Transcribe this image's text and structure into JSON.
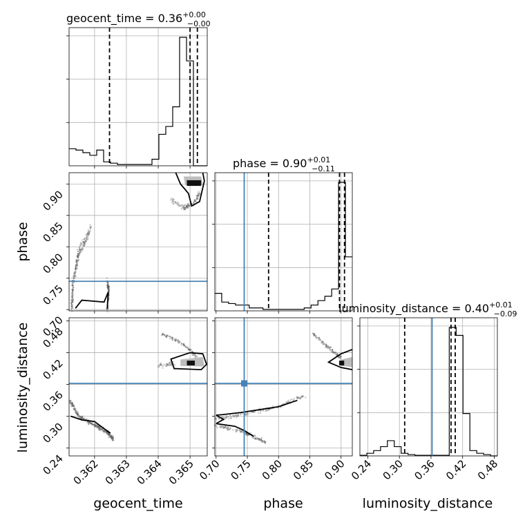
{
  "chart_data": {
    "type": "corner",
    "parameters": [
      "geocent_time",
      "phase",
      "luminosity_distance"
    ],
    "truths": {
      "geocent_time": null,
      "phase": 0.745,
      "luminosity_distance": 0.362
    },
    "titles": [
      {
        "name": "geocent_time",
        "value": "0.36",
        "plus": "+0.00",
        "minus": "−0.00"
      },
      {
        "name": "phase",
        "value": "0.90",
        "plus": "+0.01",
        "minus": "−0.11"
      },
      {
        "name": "luminosity_distance",
        "value": "0.40",
        "plus": "+0.01",
        "minus": "−0.09"
      }
    ],
    "axes": {
      "geocent_time": {
        "range": [
          0.3612,
          0.36554
        ],
        "ticks": [
          0.362,
          0.363,
          0.364,
          0.365
        ],
        "tick_labels": [
          "0.362",
          "0.363",
          "0.364",
          "0.365"
        ]
      },
      "phase": {
        "range": [
          0.698,
          0.918
        ],
        "ticks": [
          0.7,
          0.75,
          0.8,
          0.85,
          0.9
        ],
        "tick_labels": [
          "0.70",
          "0.75",
          "0.80",
          "0.85",
          "0.90"
        ]
      },
      "luminosity_distance": {
        "range": [
          0.225,
          0.486
        ],
        "ticks": [
          0.24,
          0.3,
          0.36,
          0.42,
          0.48
        ],
        "tick_labels": [
          "0.24",
          "0.30",
          "0.36",
          "0.42",
          "0.48"
        ]
      }
    },
    "histograms": {
      "geocent_time": {
        "edges_range": [
          0.3612,
          0.36554
        ],
        "bins": 20,
        "counts": [
          0.13,
          0.12,
          0.1,
          0.08,
          0.12,
          0.03,
          0.02,
          0.01,
          0.01,
          0.01,
          0.01,
          0.01,
          0.05,
          0.24,
          0.3,
          0.45,
          0.98,
          0.8,
          0.0,
          0.0
        ],
        "quantiles": [
          0.36247,
          0.365,
          0.36523
        ]
      },
      "phase": {
        "edges_range": [
          0.698,
          0.918
        ],
        "bins": 20,
        "counts": [
          0.12,
          0.06,
          0.05,
          0.04,
          0.04,
          0.02,
          0.02,
          0.01,
          0.01,
          0.01,
          0.01,
          0.01,
          0.01,
          0.02,
          0.04,
          0.07,
          0.1,
          0.15,
          0.88,
          0.37
        ],
        "quantiles": [
          0.784,
          0.8975,
          0.9055
        ]
      },
      "luminosity_distance": {
        "edges_range": [
          0.225,
          0.486
        ],
        "bins": 20,
        "counts": [
          0.005,
          0.02,
          0.04,
          0.07,
          0.115,
          0.07,
          0.02,
          0.01,
          0.005,
          0.005,
          0.005,
          0.005,
          0.005,
          0.97,
          0.91,
          0.32,
          0.04,
          0.02,
          0.01,
          0.0
        ],
        "quantiles": [
          0.31,
          0.398,
          0.406
        ]
      }
    }
  }
}
